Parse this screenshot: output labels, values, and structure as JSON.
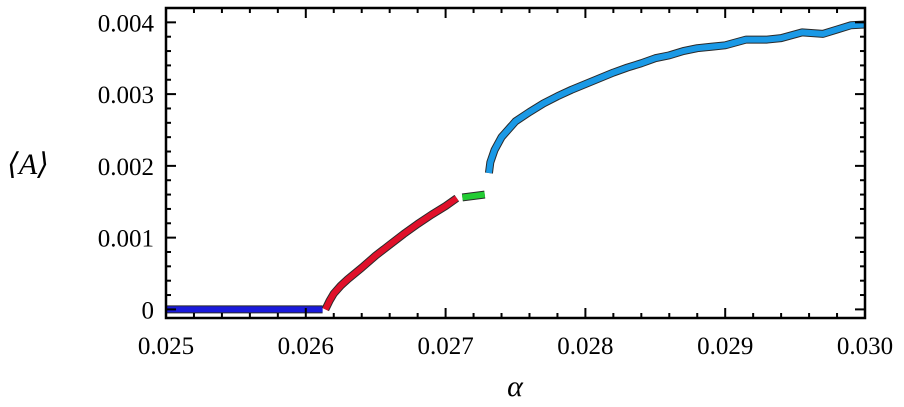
{
  "chart_data": {
    "type": "line",
    "title": "",
    "xlabel": "α",
    "ylabel": "⟨A⟩",
    "xlim": [
      0.025,
      0.03
    ],
    "ylim": [
      -0.00012,
      0.0042
    ],
    "x_ticks": [
      0.025,
      0.026,
      0.027,
      0.028,
      0.029,
      0.03
    ],
    "x_tick_labels": [
      "0.025",
      "0.026",
      "0.027",
      "0.028",
      "0.029",
      "0.030"
    ],
    "y_ticks": [
      0,
      0.001,
      0.002,
      0.003,
      0.004
    ],
    "y_tick_labels": [
      "0",
      "0.001",
      "0.002",
      "0.003",
      "0.004"
    ],
    "grid": false,
    "legend": "none",
    "series": [
      {
        "color": "#1a1adb",
        "points": [
          [
            0.025,
            0.0
          ],
          [
            0.02612,
            0.0
          ]
        ]
      },
      {
        "color": "#e0102a",
        "points": [
          [
            0.02614,
            0.0
          ],
          [
            0.02617,
            0.00012
          ],
          [
            0.0262,
            0.00022
          ],
          [
            0.02625,
            0.00033
          ],
          [
            0.0263,
            0.00042
          ],
          [
            0.0264,
            0.00058
          ],
          [
            0.0265,
            0.00075
          ],
          [
            0.0266,
            0.0009
          ],
          [
            0.0267,
            0.00105
          ],
          [
            0.0268,
            0.00119
          ],
          [
            0.0269,
            0.00132
          ],
          [
            0.027,
            0.00144
          ],
          [
            0.02708,
            0.00155
          ]
        ]
      },
      {
        "color": "#22cc33",
        "points": [
          [
            0.02712,
            0.00156
          ],
          [
            0.02728,
            0.0016
          ]
        ]
      },
      {
        "color": "#1a99e6",
        "points": [
          [
            0.02731,
            0.0019
          ],
          [
            0.02732,
            0.00205
          ],
          [
            0.02735,
            0.00222
          ],
          [
            0.0274,
            0.0024
          ],
          [
            0.0275,
            0.00262
          ],
          [
            0.0276,
            0.00275
          ],
          [
            0.0277,
            0.00287
          ],
          [
            0.0278,
            0.00297
          ],
          [
            0.0279,
            0.00306
          ],
          [
            0.028,
            0.00314
          ],
          [
            0.0281,
            0.00322
          ],
          [
            0.0282,
            0.0033
          ],
          [
            0.0283,
            0.00337
          ],
          [
            0.0284,
            0.00343
          ],
          [
            0.0285,
            0.0035
          ],
          [
            0.0286,
            0.00354
          ],
          [
            0.0287,
            0.0036
          ],
          [
            0.0288,
            0.00364
          ],
          [
            0.0289,
            0.00366
          ],
          [
            0.029,
            0.00368
          ],
          [
            0.02915,
            0.00376
          ],
          [
            0.0293,
            0.00376
          ],
          [
            0.0294,
            0.00378
          ],
          [
            0.02955,
            0.00386
          ],
          [
            0.0297,
            0.00384
          ],
          [
            0.0298,
            0.0039
          ],
          [
            0.0299,
            0.00396
          ],
          [
            0.03,
            0.00397
          ]
        ]
      }
    ]
  }
}
